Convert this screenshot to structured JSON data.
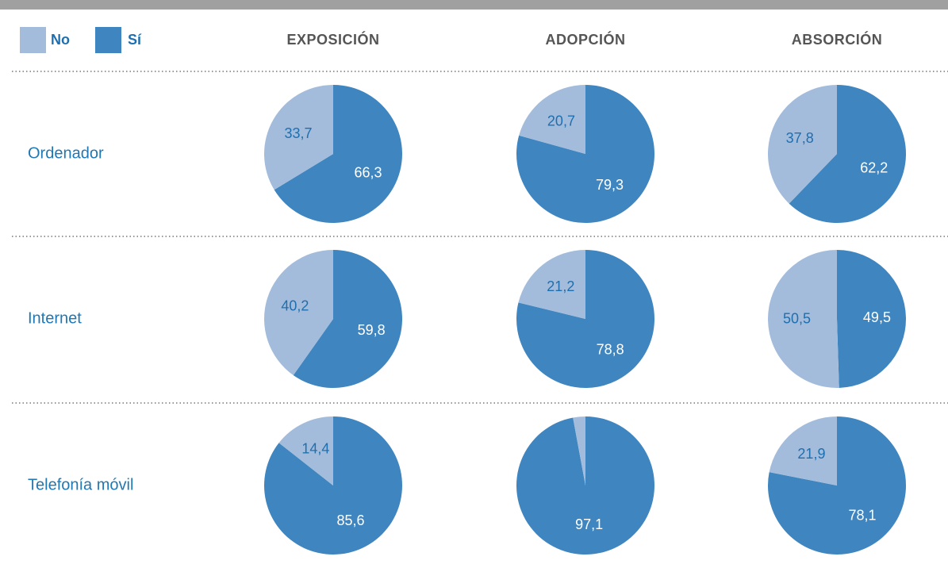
{
  "legend": [
    "No",
    "Sí"
  ],
  "columns": [
    "EXPOSICIÓN",
    "ADOPCIÓN",
    "ABSORCIÓN"
  ],
  "rows": [
    "Ordenador",
    "Internet",
    "Telefonía móvil"
  ],
  "chart_data": [
    {
      "type": "pie",
      "categories": [
        "No",
        "Sí"
      ],
      "values": [
        33.7,
        66.3
      ],
      "value_labels": [
        "33,7",
        "66,3"
      ],
      "colors": [
        "#a3bcdc",
        "#3f85bf"
      ]
    },
    {
      "type": "pie",
      "categories": [
        "No",
        "Sí"
      ],
      "values": [
        20.7,
        79.3
      ],
      "value_labels": [
        "20,7",
        "79,3"
      ],
      "colors": [
        "#a3bcdc",
        "#3f85bf"
      ]
    },
    {
      "type": "pie",
      "categories": [
        "No",
        "Sí"
      ],
      "values": [
        37.8,
        62.2
      ],
      "value_labels": [
        "37,8",
        "62,2"
      ],
      "colors": [
        "#a3bcdc",
        "#3f85bf"
      ]
    },
    {
      "type": "pie",
      "categories": [
        "No",
        "Sí"
      ],
      "values": [
        40.2,
        59.8
      ],
      "value_labels": [
        "40,2",
        "59,8"
      ],
      "colors": [
        "#a3bcdc",
        "#3f85bf"
      ]
    },
    {
      "type": "pie",
      "categories": [
        "No",
        "Sí"
      ],
      "values": [
        21.2,
        78.8
      ],
      "value_labels": [
        "21,2",
        "78,8"
      ],
      "colors": [
        "#a3bcdc",
        "#3f85bf"
      ]
    },
    {
      "type": "pie",
      "categories": [
        "No",
        "Sí"
      ],
      "values": [
        50.5,
        49.5
      ],
      "value_labels": [
        "50,5",
        "49,5"
      ],
      "colors": [
        "#a3bcdc",
        "#3f85bf"
      ]
    },
    {
      "type": "pie",
      "categories": [
        "No",
        "Sí"
      ],
      "values": [
        14.4,
        85.6
      ],
      "value_labels": [
        "14,4",
        "85,6"
      ],
      "colors": [
        "#a3bcdc",
        "#3f85bf"
      ]
    },
    {
      "type": "pie",
      "categories": [
        "No",
        "Sí"
      ],
      "values": [
        2.9,
        97.1
      ],
      "value_labels": [
        null,
        "97,1"
      ],
      "colors": [
        "#a3bcdc",
        "#3f85bf"
      ]
    },
    {
      "type": "pie",
      "categories": [
        "No",
        "Sí"
      ],
      "values": [
        21.9,
        78.1
      ],
      "value_labels": [
        "21,9",
        "78,1"
      ],
      "colors": [
        "#a3bcdc",
        "#3f85bf"
      ]
    }
  ]
}
